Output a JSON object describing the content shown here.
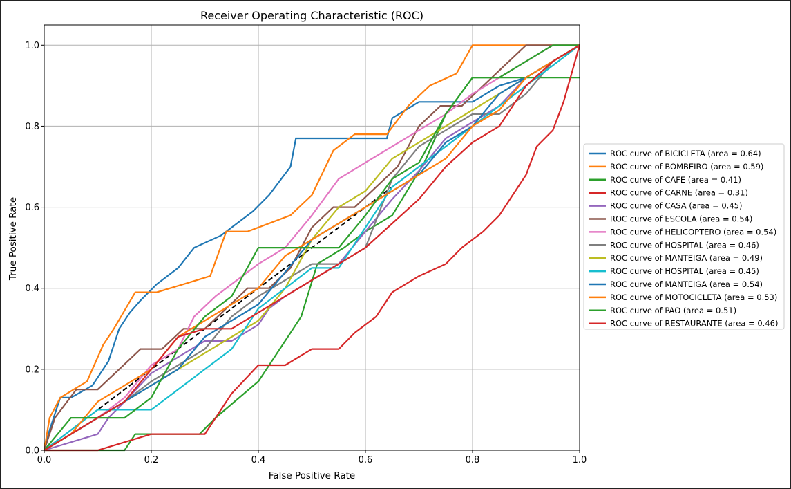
{
  "chart_data": {
    "type": "line",
    "title": "Receiver Operating Characteristic (ROC)",
    "xlabel": "False Positive Rate",
    "ylabel": "True Positive Rate",
    "xlim": [
      0,
      1
    ],
    "ylim": [
      0,
      1.05
    ],
    "xticks": [
      "0.0",
      "0.2",
      "0.4",
      "0.6",
      "0.8",
      "1.0"
    ],
    "yticks": [
      "0.0",
      "0.2",
      "0.4",
      "0.6",
      "0.8",
      "1.0"
    ],
    "grid": true,
    "legend_position": "center-right",
    "diagonal": {
      "x": [
        0,
        1
      ],
      "y": [
        0,
        1
      ],
      "color": "#000000",
      "style": "dashed"
    },
    "series": [
      {
        "name": "ROC curve of BICICLETA (area = 0.64)",
        "color": "#1f77b4",
        "x": [
          0,
          0.01,
          0.02,
          0.03,
          0.05,
          0.09,
          0.12,
          0.14,
          0.16,
          0.18,
          0.21,
          0.25,
          0.28,
          0.33,
          0.36,
          0.39,
          0.42,
          0.46,
          0.47,
          0.52,
          0.58,
          0.64,
          0.65,
          0.7,
          0.75,
          0.8,
          0.85,
          0.9,
          0.95,
          1.0
        ],
        "y": [
          0,
          0.05,
          0.09,
          0.13,
          0.13,
          0.16,
          0.22,
          0.3,
          0.34,
          0.37,
          0.41,
          0.45,
          0.5,
          0.53,
          0.56,
          0.59,
          0.63,
          0.7,
          0.77,
          0.77,
          0.77,
          0.77,
          0.82,
          0.86,
          0.86,
          0.86,
          0.9,
          0.92,
          0.96,
          1.0
        ]
      },
      {
        "name": "ROC curve of BOMBEIRO (area = 0.59)",
        "color": "#ff7f0e",
        "x": [
          0,
          0.01,
          0.03,
          0.08,
          0.11,
          0.13,
          0.17,
          0.21,
          0.26,
          0.31,
          0.34,
          0.38,
          0.46,
          0.5,
          0.54,
          0.58,
          0.64,
          0.68,
          0.72,
          0.77,
          0.8,
          0.86,
          0.9,
          0.95,
          1.0
        ],
        "y": [
          0,
          0.08,
          0.13,
          0.17,
          0.26,
          0.3,
          0.39,
          0.39,
          0.41,
          0.43,
          0.54,
          0.54,
          0.58,
          0.63,
          0.74,
          0.78,
          0.78,
          0.85,
          0.9,
          0.93,
          1.0,
          1.0,
          1.0,
          1.0,
          1.0
        ]
      },
      {
        "name": "ROC curve of CAFE (area = 0.41)",
        "color": "#2ca02c",
        "x": [
          0,
          0.05,
          0.1,
          0.15,
          0.17,
          0.2,
          0.23,
          0.29,
          0.32,
          0.4,
          0.44,
          0.48,
          0.51,
          0.56,
          0.6,
          0.65,
          0.71,
          0.75,
          0.8,
          0.86,
          0.92,
          1.0
        ],
        "y": [
          0,
          0.0,
          0.0,
          0.0,
          0.04,
          0.04,
          0.04,
          0.04,
          0.08,
          0.17,
          0.25,
          0.33,
          0.46,
          0.5,
          0.54,
          0.58,
          0.71,
          0.83,
          0.92,
          0.92,
          0.92,
          0.92
        ]
      },
      {
        "name": "ROC curve of CARNE (area = 0.31)",
        "color": "#d62728",
        "x": [
          0,
          0.04,
          0.1,
          0.2,
          0.3,
          0.35,
          0.4,
          0.45,
          0.5,
          0.55,
          0.58,
          0.62,
          0.65,
          0.7,
          0.75,
          0.78,
          0.82,
          0.85,
          0.88,
          0.9,
          0.92,
          0.95,
          0.97,
          1.0
        ],
        "y": [
          0,
          0.0,
          0.0,
          0.04,
          0.04,
          0.14,
          0.21,
          0.21,
          0.25,
          0.25,
          0.29,
          0.33,
          0.39,
          0.43,
          0.46,
          0.5,
          0.54,
          0.58,
          0.64,
          0.68,
          0.75,
          0.79,
          0.86,
          1.0
        ]
      },
      {
        "name": "ROC curve of CASA (area = 0.45)",
        "color": "#9467bd",
        "x": [
          0,
          0.1,
          0.12,
          0.15,
          0.2,
          0.25,
          0.3,
          0.35,
          0.4,
          0.42,
          0.45,
          0.5,
          0.55,
          0.6,
          0.65,
          0.7,
          0.75,
          0.8,
          0.85,
          0.9,
          0.95,
          1.0
        ],
        "y": [
          0,
          0.04,
          0.08,
          0.12,
          0.19,
          0.23,
          0.27,
          0.27,
          0.31,
          0.35,
          0.38,
          0.42,
          0.46,
          0.54,
          0.62,
          0.69,
          0.77,
          0.81,
          0.85,
          0.92,
          0.96,
          1.0
        ]
      },
      {
        "name": "ROC curve of ESCOLA (area = 0.54)",
        "color": "#8c564b",
        "x": [
          0,
          0.02,
          0.06,
          0.1,
          0.14,
          0.18,
          0.22,
          0.26,
          0.3,
          0.34,
          0.38,
          0.42,
          0.46,
          0.5,
          0.54,
          0.58,
          0.62,
          0.66,
          0.7,
          0.74,
          0.78,
          0.82,
          0.86,
          0.9,
          0.95,
          1.0
        ],
        "y": [
          0,
          0.08,
          0.15,
          0.15,
          0.2,
          0.25,
          0.25,
          0.3,
          0.3,
          0.35,
          0.4,
          0.4,
          0.45,
          0.55,
          0.6,
          0.6,
          0.65,
          0.7,
          0.8,
          0.85,
          0.85,
          0.9,
          0.95,
          1.0,
          1.0,
          1.0
        ]
      },
      {
        "name": "ROC curve of HELICOPTERO (area = 0.54)",
        "color": "#e377c2",
        "x": [
          0,
          0.05,
          0.1,
          0.15,
          0.2,
          0.25,
          0.28,
          0.32,
          0.36,
          0.4,
          0.45,
          0.5,
          0.55,
          0.6,
          0.65,
          0.7,
          0.75,
          0.8,
          0.85,
          0.9,
          0.95,
          1.0
        ],
        "y": [
          0,
          0.04,
          0.08,
          0.13,
          0.21,
          0.25,
          0.33,
          0.38,
          0.42,
          0.46,
          0.5,
          0.58,
          0.67,
          0.71,
          0.75,
          0.79,
          0.83,
          0.88,
          0.92,
          0.96,
          1.0,
          1.0
        ]
      },
      {
        "name": "ROC curve of HOSPITAL (area = 0.46)",
        "color": "#7f7f7f",
        "x": [
          0,
          0.05,
          0.1,
          0.15,
          0.2,
          0.25,
          0.3,
          0.35,
          0.4,
          0.45,
          0.5,
          0.55,
          0.6,
          0.65,
          0.7,
          0.75,
          0.8,
          0.85,
          0.9,
          0.95,
          1.0
        ],
        "y": [
          0,
          0.04,
          0.08,
          0.12,
          0.17,
          0.21,
          0.25,
          0.33,
          0.38,
          0.42,
          0.46,
          0.46,
          0.5,
          0.67,
          0.75,
          0.79,
          0.83,
          0.83,
          0.88,
          0.96,
          1.0
        ]
      },
      {
        "name": "ROC curve of MANTEIGA (area = 0.49)",
        "color": "#bcbd22",
        "x": [
          0,
          0.05,
          0.1,
          0.15,
          0.2,
          0.25,
          0.3,
          0.35,
          0.4,
          0.45,
          0.5,
          0.55,
          0.6,
          0.65,
          0.7,
          0.75,
          0.8,
          0.85,
          0.9,
          0.95,
          1.0
        ],
        "y": [
          0,
          0.04,
          0.08,
          0.12,
          0.16,
          0.2,
          0.24,
          0.28,
          0.32,
          0.4,
          0.52,
          0.6,
          0.64,
          0.72,
          0.76,
          0.8,
          0.84,
          0.88,
          0.92,
          0.96,
          1.0
        ]
      },
      {
        "name": "ROC curve of HOSPITAL (area = 0.45)",
        "color": "#17becf",
        "x": [
          0,
          0.05,
          0.1,
          0.15,
          0.2,
          0.25,
          0.3,
          0.35,
          0.4,
          0.45,
          0.5,
          0.55,
          0.6,
          0.65,
          0.7,
          0.75,
          0.8,
          0.85,
          0.9,
          0.95,
          1.0
        ],
        "y": [
          0,
          0.05,
          0.1,
          0.1,
          0.1,
          0.15,
          0.2,
          0.25,
          0.35,
          0.4,
          0.45,
          0.45,
          0.55,
          0.65,
          0.7,
          0.75,
          0.8,
          0.85,
          0.9,
          0.95,
          1.0
        ]
      },
      {
        "name": "ROC curve of MANTEIGA (area = 0.54)",
        "color": "#1f77b4",
        "x": [
          0,
          0.05,
          0.1,
          0.15,
          0.2,
          0.25,
          0.3,
          0.35,
          0.4,
          0.45,
          0.5,
          0.55,
          0.6,
          0.65,
          0.7,
          0.75,
          0.8,
          0.85,
          0.9,
          0.95,
          1.0
        ],
        "y": [
          0,
          0.04,
          0.08,
          0.12,
          0.16,
          0.2,
          0.28,
          0.32,
          0.36,
          0.44,
          0.52,
          0.56,
          0.6,
          0.64,
          0.68,
          0.76,
          0.8,
          0.88,
          0.92,
          0.96,
          1.0
        ]
      },
      {
        "name": "ROC curve of MOTOCICLETA (area = 0.53)",
        "color": "#ff7f0e",
        "x": [
          0,
          0.05,
          0.1,
          0.15,
          0.2,
          0.25,
          0.3,
          0.35,
          0.4,
          0.45,
          0.5,
          0.55,
          0.6,
          0.65,
          0.7,
          0.75,
          0.8,
          0.85,
          0.9,
          0.95,
          1.0
        ],
        "y": [
          0,
          0.04,
          0.12,
          0.16,
          0.2,
          0.28,
          0.32,
          0.36,
          0.4,
          0.48,
          0.52,
          0.56,
          0.6,
          0.64,
          0.68,
          0.72,
          0.8,
          0.84,
          0.92,
          0.96,
          1.0
        ]
      },
      {
        "name": "ROC curve of PAO (area = 0.51)",
        "color": "#2ca02c",
        "x": [
          0,
          0.05,
          0.1,
          0.15,
          0.2,
          0.25,
          0.3,
          0.35,
          0.4,
          0.45,
          0.5,
          0.55,
          0.6,
          0.65,
          0.7,
          0.75,
          0.8,
          0.85,
          0.9,
          0.95,
          1.0
        ],
        "y": [
          0,
          0.08,
          0.08,
          0.08,
          0.13,
          0.25,
          0.33,
          0.38,
          0.5,
          0.5,
          0.5,
          0.5,
          0.58,
          0.67,
          0.71,
          0.83,
          0.92,
          0.92,
          0.96,
          1.0,
          1.0
        ]
      },
      {
        "name": "ROC curve of RESTAURANTE (area = 0.46)",
        "color": "#d62728",
        "x": [
          0,
          0.05,
          0.1,
          0.15,
          0.2,
          0.25,
          0.3,
          0.35,
          0.4,
          0.45,
          0.5,
          0.55,
          0.6,
          0.65,
          0.7,
          0.75,
          0.8,
          0.85,
          0.9,
          0.95,
          1.0
        ],
        "y": [
          0,
          0.04,
          0.08,
          0.12,
          0.2,
          0.28,
          0.3,
          0.3,
          0.34,
          0.38,
          0.42,
          0.46,
          0.5,
          0.56,
          0.62,
          0.7,
          0.76,
          0.8,
          0.9,
          0.96,
          1.0
        ]
      }
    ]
  }
}
